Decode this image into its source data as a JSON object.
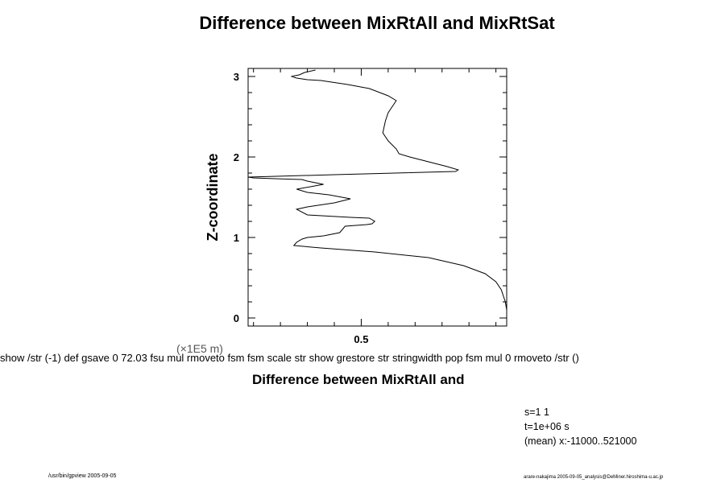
{
  "title": "Difference between MixRtAll and MixRtSat",
  "postscript_text": "show /str (-1) def gsave 0 72.03 fsu mul rmoveto fsm fsm scale str show grestore str stringwidth pop fsm mul 0 rmoveto /str () ",
  "footer_left": "/usr/bin/gpview 2005-09-05",
  "footer_right": "arare-nakajima 2005-09-05_analysis@DeMiner.hiroshima-u.ac.jp",
  "info": [
    "s=1 1",
    "t=1e+06 s",
    "(mean) x:-11000..521000"
  ],
  "chart_data": {
    "type": "line",
    "title": "Difference between MixRtAll and MixRtSat",
    "xlabel": "Difference between MixRtAll and",
    "ylabel": "Z-coordinate",
    "yunit": "(×1E5 m)",
    "xlim": [
      0.08,
      1.04
    ],
    "ylim": [
      -0.1,
      3.1
    ],
    "xticks": [
      0.5
    ],
    "yticks": [
      0,
      1,
      2,
      3
    ],
    "grid": false,
    "series": [
      {
        "x": [
          1.04,
          1.035,
          1.02,
          1.0,
          0.96,
          0.88,
          0.75,
          0.55,
          0.35,
          0.25,
          0.26,
          0.28,
          0.3,
          0.36,
          0.42,
          0.44,
          0.52,
          0.54,
          0.55,
          0.53,
          0.46,
          0.3,
          0.26,
          0.3,
          0.4,
          0.46,
          0.38,
          0.3,
          0.26,
          0.36,
          0.3,
          0.28,
          0.18,
          0.1,
          0.08,
          0.4,
          0.85,
          0.86,
          0.82,
          0.68,
          0.64,
          0.63,
          0.6,
          0.58,
          0.59,
          0.6,
          0.61,
          0.62,
          0.63,
          0.6,
          0.53,
          0.45,
          0.35,
          0.3,
          0.26,
          0.24,
          0.27,
          0.29,
          0.33
        ],
        "y": [
          0.1,
          0.2,
          0.35,
          0.45,
          0.55,
          0.65,
          0.75,
          0.82,
          0.87,
          0.9,
          0.94,
          0.98,
          1.0,
          1.02,
          1.06,
          1.14,
          1.16,
          1.17,
          1.2,
          1.24,
          1.25,
          1.28,
          1.35,
          1.38,
          1.43,
          1.48,
          1.53,
          1.56,
          1.6,
          1.66,
          1.7,
          1.72,
          1.73,
          1.74,
          1.75,
          1.78,
          1.82,
          1.84,
          1.88,
          2.0,
          2.04,
          2.1,
          2.2,
          2.3,
          2.45,
          2.55,
          2.6,
          2.65,
          2.7,
          2.76,
          2.85,
          2.9,
          2.95,
          2.96,
          2.98,
          3.0,
          3.02,
          3.05,
          3.08
        ]
      }
    ]
  }
}
